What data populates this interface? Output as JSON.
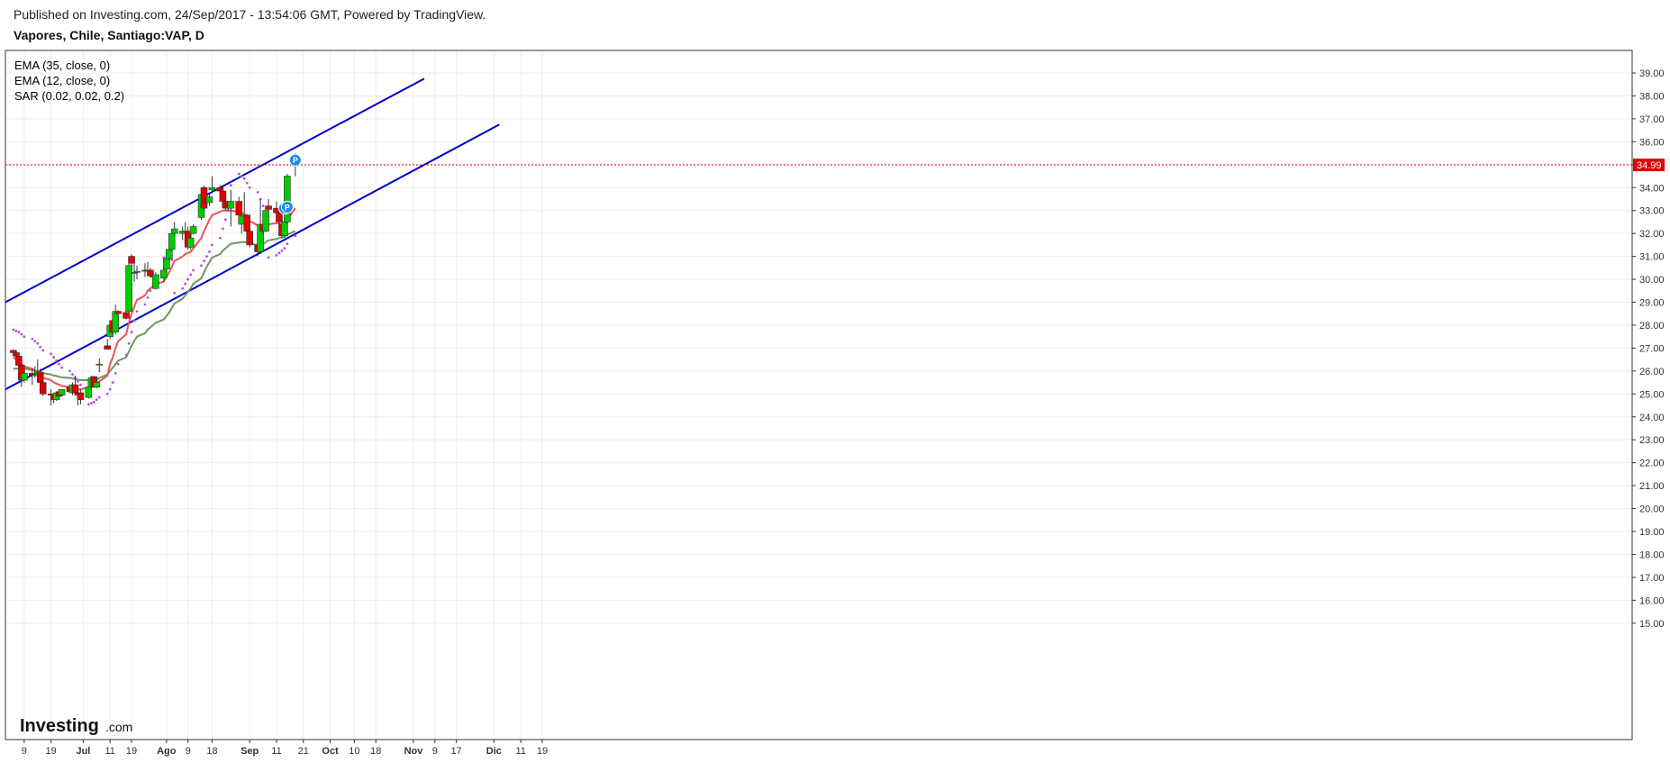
{
  "header": {
    "published": "Published on Investing.com, 24/Sep/2017 - 13:54:06 GMT, Powered by TradingView.",
    "symbol": "Vapores, Chile, Santiago:VAP, D"
  },
  "indicators": [
    "EMA (35, close, 0)",
    "EMA (12, close, 0)",
    "SAR (0.02, 0.02, 0.2)"
  ],
  "logo": {
    "main": "Investing",
    "sub": ".com"
  },
  "colors": {
    "up": "#00cc00",
    "down": "#e00000",
    "ema12": "#ef5350",
    "ema35": "#6a9a5a",
    "sar": "#b44fe8",
    "trend": "#0000cc",
    "price_line": "#e00000",
    "marker": "#1e88e5"
  },
  "chart_data": {
    "type": "candlestick",
    "y_range": [
      14.6,
      39.6
    ],
    "y_ticks": [
      "15.00",
      "16.00",
      "17.00",
      "18.00",
      "19.00",
      "20.00",
      "21.00",
      "22.00",
      "23.00",
      "24.00",
      "25.00",
      "26.00",
      "27.00",
      "28.00",
      "29.00",
      "30.00",
      "31.00",
      "32.00",
      "33.00",
      "34.00",
      "35.00",
      "36.00",
      "37.00",
      "38.00",
      "39.00"
    ],
    "x_ticks": [
      {
        "label": "9",
        "date": "2017-06-09",
        "bold": false
      },
      {
        "label": "19",
        "date": "2017-06-19",
        "bold": false
      },
      {
        "label": "Jul",
        "date": "2017-07-01",
        "bold": true
      },
      {
        "label": "11",
        "date": "2017-07-11",
        "bold": false
      },
      {
        "label": "19",
        "date": "2017-07-19",
        "bold": false
      },
      {
        "label": "Ago",
        "date": "2017-08-01",
        "bold": true
      },
      {
        "label": "9",
        "date": "2017-08-09",
        "bold": false
      },
      {
        "label": "18",
        "date": "2017-08-18",
        "bold": false
      },
      {
        "label": "Sep",
        "date": "2017-09-01",
        "bold": true
      },
      {
        "label": "11",
        "date": "2017-09-11",
        "bold": false
      },
      {
        "label": "21",
        "date": "2017-09-21",
        "bold": false
      },
      {
        "label": "Oct",
        "date": "2017-10-01",
        "bold": true
      },
      {
        "label": "10",
        "date": "2017-10-10",
        "bold": false
      },
      {
        "label": "18",
        "date": "2017-10-18",
        "bold": false
      },
      {
        "label": "Nov",
        "date": "2017-11-01",
        "bold": true
      },
      {
        "label": "9",
        "date": "2017-11-09",
        "bold": false
      },
      {
        "label": "17",
        "date": "2017-11-17",
        "bold": false
      },
      {
        "label": "Dic",
        "date": "2017-12-01",
        "bold": true
      },
      {
        "label": "11",
        "date": "2017-12-11",
        "bold": false
      },
      {
        "label": "19",
        "date": "2017-12-19",
        "bold": false
      }
    ],
    "last_price": "34.99",
    "candles": [
      {
        "d": "2017-06-05",
        "o": 26.9,
        "h": 26.95,
        "l": 26.75,
        "c": 26.8
      },
      {
        "d": "2017-06-06",
        "o": 26.8,
        "h": 26.85,
        "l": 26.5,
        "c": 26.65
      },
      {
        "d": "2017-06-07",
        "o": 26.65,
        "h": 26.7,
        "l": 26.2,
        "c": 26.25
      },
      {
        "d": "2017-06-08",
        "o": 26.25,
        "h": 26.3,
        "l": 25.3,
        "c": 25.6
      },
      {
        "d": "2017-06-09",
        "o": 25.6,
        "h": 26.0,
        "l": 25.5,
        "c": 25.9
      },
      {
        "d": "2017-06-12",
        "o": 25.9,
        "h": 26.1,
        "l": 25.4,
        "c": 25.8
      },
      {
        "d": "2017-06-13",
        "o": 25.8,
        "h": 26.2,
        "l": 25.7,
        "c": 25.85
      },
      {
        "d": "2017-06-14",
        "o": 25.85,
        "h": 26.5,
        "l": 25.8,
        "c": 25.95
      },
      {
        "d": "2017-06-15",
        "o": 25.95,
        "h": 26.1,
        "l": 25.4,
        "c": 25.5
      },
      {
        "d": "2017-06-16",
        "o": 25.5,
        "h": 25.6,
        "l": 24.9,
        "c": 25.0
      },
      {
        "d": "2017-06-19",
        "o": 25.0,
        "h": 25.2,
        "l": 24.5,
        "c": 24.95
      },
      {
        "d": "2017-06-20",
        "o": 25.0,
        "h": 25.05,
        "l": 24.6,
        "c": 24.75
      },
      {
        "d": "2017-06-21",
        "o": 24.75,
        "h": 25.1,
        "l": 24.7,
        "c": 25.05
      },
      {
        "d": "2017-06-22",
        "o": 25.1,
        "h": 25.15,
        "l": 24.85,
        "c": 24.9
      },
      {
        "d": "2017-06-23",
        "o": 24.95,
        "h": 25.2,
        "l": 24.9,
        "c": 25.2
      },
      {
        "d": "2017-06-26",
        "o": 25.3,
        "h": 25.35,
        "l": 25.05,
        "c": 25.1
      },
      {
        "d": "2017-06-27",
        "o": 25.05,
        "h": 25.5,
        "l": 24.95,
        "c": 25.4
      },
      {
        "d": "2017-06-28",
        "o": 25.4,
        "h": 25.8,
        "l": 25.0,
        "c": 25.05
      },
      {
        "d": "2017-06-29",
        "o": 25.05,
        "h": 25.3,
        "l": 24.5,
        "c": 24.95
      },
      {
        "d": "2017-06-30",
        "o": 25.05,
        "h": 25.2,
        "l": 24.55,
        "c": 24.75
      },
      {
        "d": "2017-07-03",
        "o": 24.85,
        "h": 25.5,
        "l": 24.8,
        "c": 25.3
      },
      {
        "d": "2017-07-04",
        "o": 25.3,
        "h": 25.8,
        "l": 25.2,
        "c": 25.7
      },
      {
        "d": "2017-07-05",
        "o": 25.75,
        "h": 25.8,
        "l": 25.25,
        "c": 25.3
      },
      {
        "d": "2017-07-06",
        "o": 25.3,
        "h": 25.7,
        "l": 25.25,
        "c": 25.5
      },
      {
        "d": "2017-07-07",
        "o": 26.3,
        "h": 26.55,
        "l": 25.95,
        "c": 26.3
      },
      {
        "d": "2017-07-10",
        "o": 27.1,
        "h": 27.4,
        "l": 26.95,
        "c": 26.95
      },
      {
        "d": "2017-07-11",
        "o": 27.5,
        "h": 28.2,
        "l": 27.4,
        "c": 28.0
      },
      {
        "d": "2017-07-12",
        "o": 28.2,
        "h": 28.3,
        "l": 27.65,
        "c": 27.7
      },
      {
        "d": "2017-07-13",
        "o": 27.7,
        "h": 28.9,
        "l": 27.6,
        "c": 28.6
      },
      {
        "d": "2017-07-14",
        "o": 28.6,
        "h": 28.65,
        "l": 28.5,
        "c": 28.5
      },
      {
        "d": "2017-07-17",
        "o": 28.55,
        "h": 28.6,
        "l": 28.25,
        "c": 28.3
      },
      {
        "d": "2017-07-18",
        "o": 28.6,
        "h": 30.7,
        "l": 28.5,
        "c": 30.6
      },
      {
        "d": "2017-07-19",
        "o": 31.0,
        "h": 31.1,
        "l": 30.6,
        "c": 30.7
      },
      {
        "d": "2017-07-20",
        "o": 30.3,
        "h": 30.8,
        "l": 29.9,
        "c": 30.3
      },
      {
        "d": "2017-07-21",
        "o": 30.3,
        "h": 30.6,
        "l": 30.0,
        "c": 30.35
      },
      {
        "d": "2017-07-24",
        "o": 30.35,
        "h": 30.7,
        "l": 30.1,
        "c": 30.4
      },
      {
        "d": "2017-07-25",
        "o": 30.4,
        "h": 30.75,
        "l": 30.2,
        "c": 30.4
      },
      {
        "d": "2017-07-26",
        "o": 30.4,
        "h": 30.5,
        "l": 30.1,
        "c": 30.15
      },
      {
        "d": "2017-07-27",
        "o": 30.15,
        "h": 30.3,
        "l": 29.95,
        "c": 30.1
      },
      {
        "d": "2017-07-28",
        "o": 29.6,
        "h": 30.3,
        "l": 29.55,
        "c": 30.2
      },
      {
        "d": "2017-07-31",
        "o": 30.05,
        "h": 30.5,
        "l": 29.9,
        "c": 30.4
      },
      {
        "d": "2017-08-01",
        "o": 30.45,
        "h": 31.0,
        "l": 30.3,
        "c": 30.9
      },
      {
        "d": "2017-08-02",
        "o": 30.9,
        "h": 31.5,
        "l": 30.8,
        "c": 31.3
      },
      {
        "d": "2017-08-03",
        "o": 31.3,
        "h": 32.1,
        "l": 31.2,
        "c": 32.0
      },
      {
        "d": "2017-08-04",
        "o": 32.0,
        "h": 32.5,
        "l": 31.9,
        "c": 32.2
      },
      {
        "d": "2017-08-07",
        "o": 32.0,
        "h": 32.3,
        "l": 31.7,
        "c": 32.1
      },
      {
        "d": "2017-08-08",
        "o": 32.0,
        "h": 32.5,
        "l": 31.9,
        "c": 32.1
      },
      {
        "d": "2017-08-09",
        "o": 32.1,
        "h": 32.3,
        "l": 31.3,
        "c": 31.4
      },
      {
        "d": "2017-08-10",
        "o": 31.4,
        "h": 32.0,
        "l": 31.3,
        "c": 31.8
      },
      {
        "d": "2017-08-11",
        "o": 32.0,
        "h": 32.4,
        "l": 31.95,
        "c": 32.3
      },
      {
        "d": "2017-08-14",
        "o": 32.7,
        "h": 33.9,
        "l": 32.6,
        "c": 33.7
      },
      {
        "d": "2017-08-15",
        "o": 34.0,
        "h": 34.1,
        "l": 33.0,
        "c": 33.1
      },
      {
        "d": "2017-08-16",
        "o": 33.5,
        "h": 33.6,
        "l": 33.2,
        "c": 33.35
      },
      {
        "d": "2017-08-17",
        "o": 33.35,
        "h": 33.75,
        "l": 33.2,
        "c": 33.6
      },
      {
        "d": "2017-08-18",
        "o": 33.9,
        "h": 34.5,
        "l": 33.8,
        "c": 34.0
      },
      {
        "d": "2017-08-21",
        "o": 34.0,
        "h": 34.1,
        "l": 33.8,
        "c": 33.85
      },
      {
        "d": "2017-08-22",
        "o": 33.85,
        "h": 33.9,
        "l": 33.3,
        "c": 33.4
      },
      {
        "d": "2017-08-23",
        "o": 33.4,
        "h": 33.5,
        "l": 33.0,
        "c": 33.1
      },
      {
        "d": "2017-08-24",
        "o": 33.2,
        "h": 33.3,
        "l": 33.0,
        "c": 33.1
      },
      {
        "d": "2017-08-25",
        "o": 33.1,
        "h": 33.9,
        "l": 32.3,
        "c": 33.4
      },
      {
        "d": "2017-08-28",
        "o": 33.4,
        "h": 33.6,
        "l": 32.7,
        "c": 32.8
      },
      {
        "d": "2017-08-29",
        "o": 32.4,
        "h": 32.9,
        "l": 32.0,
        "c": 32.8
      },
      {
        "d": "2017-08-30",
        "o": 32.75,
        "h": 33.8,
        "l": 32.1,
        "c": 32.8
      },
      {
        "d": "2017-08-31",
        "o": 32.8,
        "h": 32.85,
        "l": 32.0,
        "c": 32.1
      },
      {
        "d": "2017-09-01",
        "o": 32.1,
        "h": 32.2,
        "l": 31.4,
        "c": 31.5
      },
      {
        "d": "2017-09-04",
        "o": 31.5,
        "h": 31.6,
        "l": 31.0,
        "c": 31.2
      },
      {
        "d": "2017-09-05",
        "o": 31.2,
        "h": 33.5,
        "l": 31.1,
        "c": 32.4
      },
      {
        "d": "2017-09-06",
        "o": 32.4,
        "h": 32.6,
        "l": 32.0,
        "c": 32.1
      },
      {
        "d": "2017-09-07",
        "o": 32.1,
        "h": 33.1,
        "l": 32.05,
        "c": 33.0
      },
      {
        "d": "2017-09-08",
        "o": 33.2,
        "h": 33.5,
        "l": 33.0,
        "c": 33.05
      },
      {
        "d": "2017-09-11",
        "o": 33.1,
        "h": 33.4,
        "l": 32.7,
        "c": 32.9
      },
      {
        "d": "2017-09-12",
        "o": 32.9,
        "h": 33.0,
        "l": 32.3,
        "c": 32.5
      },
      {
        "d": "2017-09-13",
        "o": 32.4,
        "h": 32.6,
        "l": 31.8,
        "c": 31.9
      },
      {
        "d": "2017-09-14",
        "o": 31.9,
        "h": 32.6,
        "l": 31.8,
        "c": 32.5
      },
      {
        "d": "2017-09-15",
        "o": 32.5,
        "h": 34.6,
        "l": 32.4,
        "c": 34.5
      },
      {
        "d": "2017-09-18",
        "o": 34.99,
        "h": 35.5,
        "l": 34.5,
        "c": 34.99
      }
    ],
    "ema12": [
      26.6,
      26.5,
      26.4,
      26.3,
      26.2,
      26.1,
      26.0,
      25.9,
      25.8,
      25.7,
      25.6,
      25.5,
      25.45,
      25.4,
      25.35,
      25.3,
      25.28,
      25.25,
      25.2,
      25.2,
      25.3,
      25.35,
      25.4,
      25.45,
      25.55,
      25.8,
      26.3,
      26.6,
      27.0,
      27.3,
      27.6,
      28.1,
      28.5,
      28.8,
      29.1,
      29.3,
      29.5,
      29.6,
      29.7,
      29.8,
      29.9,
      30.1,
      30.3,
      30.55,
      30.8,
      31.0,
      31.1,
      31.15,
      31.2,
      31.35,
      31.8,
      32.1,
      32.35,
      32.6,
      32.8,
      32.95,
      33.0,
      33.0,
      33.0,
      33.0,
      32.95,
      32.9,
      32.85,
      32.75,
      32.55,
      32.35,
      32.25,
      32.2,
      32.3,
      32.4,
      32.45,
      32.45,
      32.35,
      32.3,
      32.6,
      33.1
    ],
    "ema35": [
      26.1,
      26.1,
      26.1,
      26.1,
      26.1,
      26.05,
      26.0,
      26.0,
      25.95,
      25.9,
      25.85,
      25.8,
      25.78,
      25.75,
      25.72,
      25.7,
      25.68,
      25.65,
      25.62,
      25.6,
      25.6,
      25.6,
      25.6,
      25.62,
      25.7,
      25.85,
      26.0,
      26.15,
      26.3,
      26.45,
      26.6,
      26.85,
      27.1,
      27.3,
      27.5,
      27.65,
      27.8,
      27.9,
      28.0,
      28.1,
      28.25,
      28.4,
      28.55,
      28.75,
      28.95,
      29.15,
      29.3,
      29.45,
      29.6,
      29.8,
      30.05,
      30.3,
      30.55,
      30.75,
      30.95,
      31.1,
      31.25,
      31.35,
      31.45,
      31.55,
      31.6,
      31.62,
      31.62,
      31.6,
      31.55,
      31.5,
      31.5,
      31.55,
      31.62,
      31.7,
      31.76,
      31.8,
      31.82,
      31.85,
      31.95,
      32.1
    ],
    "sar": [
      27.8,
      27.75,
      27.7,
      27.6,
      27.5,
      27.4,
      27.3,
      27.2,
      27.05,
      26.9,
      26.75,
      26.6,
      26.45,
      26.3,
      26.15,
      26.0,
      25.85,
      25.7,
      25.55,
      25.4,
      24.55,
      24.6,
      24.65,
      24.75,
      24.85,
      25.0,
      25.2,
      25.5,
      25.9,
      26.3,
      26.7,
      27.2,
      27.7,
      28.2,
      28.6,
      28.9,
      29.2,
      29.5,
      29.8,
      30.0,
      30.95,
      30.95,
      30.9,
      30.85,
      29.4,
      29.6,
      29.8,
      30.0,
      30.2,
      30.4,
      30.6,
      30.8,
      31.0,
      31.2,
      31.5,
      31.8,
      32.2,
      32.6,
      33.0,
      34.1,
      34.6,
      34.5,
      34.4,
      34.2,
      34.0,
      33.8,
      33.5,
      33.2,
      32.9,
      30.95,
      31.05,
      31.15,
      31.25,
      31.35,
      31.55,
      31.9
    ],
    "trendlines": [
      {
        "from": {
          "d": "2017-06-02",
          "v": 25.2
        },
        "to": {
          "d": "2017-12-03",
          "v": 36.75
        }
      },
      {
        "from": {
          "d": "2017-06-02",
          "v": 29.0
        },
        "to": {
          "d": "2017-11-05",
          "v": 38.75
        }
      }
    ],
    "markers": [
      {
        "label": "P",
        "d": "2017-09-14",
        "v": 33.1
      },
      {
        "label": "P",
        "d": "2017-09-15",
        "v": 33.15
      },
      {
        "label": "P",
        "d": "2017-09-18",
        "v": 35.2
      }
    ]
  }
}
